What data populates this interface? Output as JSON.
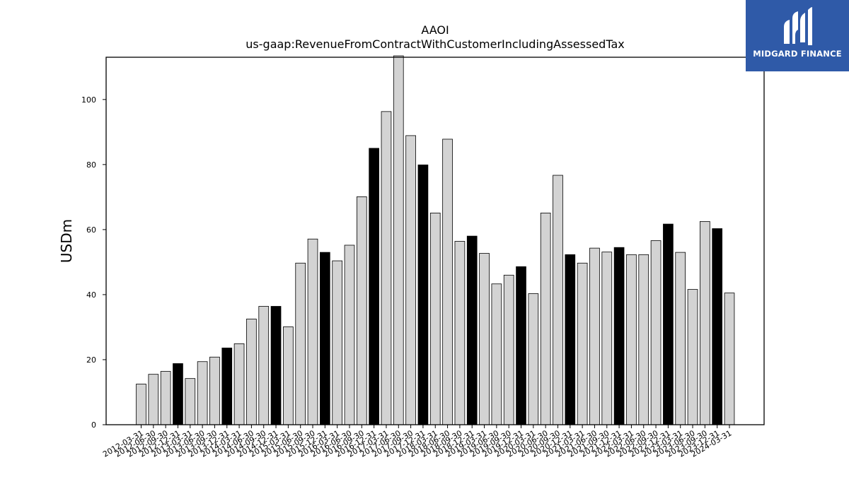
{
  "chart_data": {
    "type": "bar",
    "title": "AAOI",
    "subtitle": "us-gaap:RevenueFromContractWithCustomerIncludingAssessedTax",
    "xlabel": "",
    "ylabel": "USDm",
    "ylim": [
      0,
      113
    ],
    "yticks": [
      0,
      20,
      40,
      60,
      80,
      100
    ],
    "grid": false,
    "categories": [
      "2012-03-31",
      "2012-06-30",
      "2012-09-30",
      "2012-12-31",
      "2013-03-31",
      "2013-06-30",
      "2013-09-30",
      "2013-12-31",
      "2014-03-31",
      "2014-06-30",
      "2014-09-30",
      "2014-12-31",
      "2015-03-31",
      "2015-06-30",
      "2015-09-30",
      "2015-12-31",
      "2016-03-31",
      "2016-06-30",
      "2016-09-30",
      "2016-12-31",
      "2017-03-31",
      "2017-06-30",
      "2017-09-30",
      "2017-12-31",
      "2018-03-31",
      "2018-06-30",
      "2018-09-30",
      "2018-12-31",
      "2019-03-31",
      "2019-06-30",
      "2019-09-30",
      "2019-12-31",
      "2020-03-31",
      "2020-06-30",
      "2020-09-30",
      "2020-12-31",
      "2021-03-31",
      "2021-06-30",
      "2021-09-30",
      "2021-12-31",
      "2022-03-31",
      "2022-06-30",
      "2022-09-30",
      "2022-12-31",
      "2023-03-31",
      "2023-06-30",
      "2023-09-30",
      "2023-12-31",
      "2024-03-31"
    ],
    "values": [
      12.5,
      15.5,
      16.4,
      18.8,
      14.2,
      19.4,
      20.8,
      23.6,
      24.9,
      32.5,
      36.4,
      36.4,
      30.1,
      49.7,
      57.1,
      53.0,
      50.4,
      55.2,
      70.1,
      85.0,
      96.3,
      113.5,
      88.9,
      79.9,
      65.1,
      87.8,
      56.4,
      58.0,
      52.7,
      43.3,
      46.0,
      48.6,
      40.3,
      65.1,
      76.7,
      52.3,
      49.7,
      54.3,
      53.1,
      54.5,
      52.3,
      52.3,
      56.6,
      61.7,
      53.0,
      41.6,
      62.5,
      60.3,
      40.5
    ],
    "colors": {
      "bar": "#d3d3d3",
      "bar_q4": "#000000",
      "edge": "#000000"
    }
  },
  "logo": {
    "name": "MIDGARD FINANCE",
    "colors": {
      "background": "#2f5aa8",
      "text": "#ffffff"
    }
  }
}
